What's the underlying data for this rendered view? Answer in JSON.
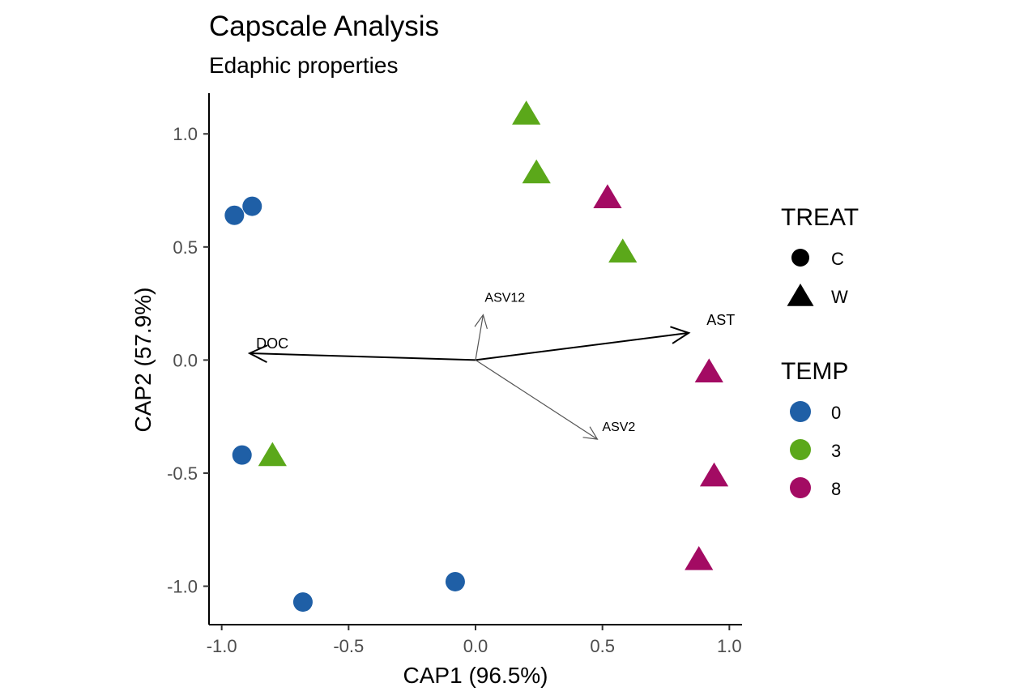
{
  "chart_data": {
    "type": "scatter",
    "title": "Capscale Analysis",
    "subtitle": "Edaphic properties",
    "xlabel": "CAP1 (96.5%)",
    "ylabel": "CAP2 (57.9%)",
    "xlim": [
      -1.05,
      1.05
    ],
    "ylim": [
      -1.17,
      1.18
    ],
    "xticks": [
      -1.0,
      -0.5,
      0.0,
      0.5,
      1.0
    ],
    "xtick_labels": [
      "-1.0",
      "-0.5",
      "0.0",
      "0.5",
      "1.0"
    ],
    "yticks": [
      -1.0,
      -0.5,
      0.0,
      0.5,
      1.0
    ],
    "ytick_labels": [
      "-1.0",
      "-0.5",
      "0.0",
      "0.5",
      "1.0"
    ],
    "grid": false,
    "legend_placement": "right",
    "colors": {
      "0": "#1f5fa6",
      "3": "#5ba81a",
      "8": "#a30b63"
    },
    "points": [
      {
        "x": -0.95,
        "y": 0.64,
        "treat": "C",
        "temp": "0"
      },
      {
        "x": -0.88,
        "y": 0.68,
        "treat": "C",
        "temp": "0"
      },
      {
        "x": -0.92,
        "y": -0.42,
        "treat": "C",
        "temp": "0"
      },
      {
        "x": -0.68,
        "y": -1.07,
        "treat": "C",
        "temp": "0"
      },
      {
        "x": -0.08,
        "y": -0.98,
        "treat": "C",
        "temp": "0"
      },
      {
        "x": 0.2,
        "y": 1.09,
        "treat": "W",
        "temp": "3"
      },
      {
        "x": 0.24,
        "y": 0.83,
        "treat": "W",
        "temp": "3"
      },
      {
        "x": 0.58,
        "y": 0.48,
        "treat": "W",
        "temp": "3"
      },
      {
        "x": -0.8,
        "y": -0.42,
        "treat": "W",
        "temp": "3"
      },
      {
        "x": 0.52,
        "y": 0.72,
        "treat": "W",
        "temp": "8"
      },
      {
        "x": 0.92,
        "y": -0.05,
        "treat": "W",
        "temp": "8"
      },
      {
        "x": 0.94,
        "y": -0.51,
        "treat": "W",
        "temp": "8"
      },
      {
        "x": 0.88,
        "y": -0.88,
        "treat": "W",
        "temp": "8"
      }
    ],
    "vectors": [
      {
        "name": "DOC",
        "x": -0.89,
        "y": 0.03,
        "emphasis": "strong"
      },
      {
        "name": "AST",
        "x": 0.84,
        "y": 0.12,
        "emphasis": "strong"
      },
      {
        "name": "ASV12",
        "x": 0.03,
        "y": 0.2,
        "emphasis": "light"
      },
      {
        "name": "ASV2",
        "x": 0.48,
        "y": -0.35,
        "emphasis": "light"
      }
    ],
    "legends": [
      {
        "title": "TREAT",
        "entries": [
          {
            "label": "C",
            "shape": "circle"
          },
          {
            "label": "W",
            "shape": "triangle"
          }
        ]
      },
      {
        "title": "TEMP",
        "entries": [
          {
            "label": "0",
            "color": "#1f5fa6"
          },
          {
            "label": "3",
            "color": "#5ba81a"
          },
          {
            "label": "8",
            "color": "#a30b63"
          }
        ]
      }
    ]
  }
}
